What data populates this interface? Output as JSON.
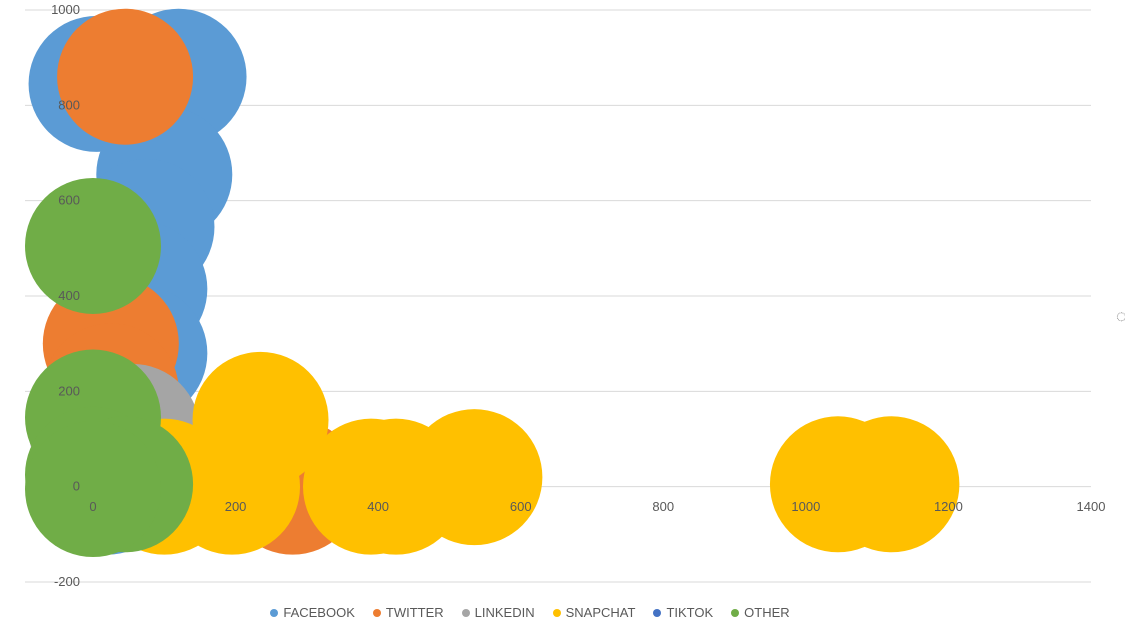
{
  "chart_data": {
    "type": "bubble",
    "xlim": [
      0,
      1400
    ],
    "ylim": [
      -200,
      1000
    ],
    "x_ticks": [
      "0",
      "200",
      "400",
      "600",
      "800",
      "1000",
      "1200",
      "1400"
    ],
    "y_ticks": [
      "-200",
      "0",
      "200",
      "400",
      "600",
      "800",
      "1000"
    ],
    "grid": true,
    "legend_position": "bottom",
    "series": [
      {
        "name": "FACEBOOK",
        "color": "#5B9BD5",
        "points": [
          {
            "x": 5,
            "y": 845
          },
          {
            "x": 120,
            "y": 860
          },
          {
            "x": 100,
            "y": 655
          },
          {
            "x": 75,
            "y": 545
          },
          {
            "x": 65,
            "y": 415
          },
          {
            "x": 65,
            "y": 280
          },
          {
            "x": 25,
            "y": 180
          },
          {
            "x": 55,
            "y": 40
          },
          {
            "x": 20,
            "y": 0
          }
        ]
      },
      {
        "name": "TWITTER",
        "color": "#ED7D31",
        "points": [
          {
            "x": 45,
            "y": 860
          },
          {
            "x": 25,
            "y": 300
          },
          {
            "x": 25,
            "y": 200
          },
          {
            "x": 280,
            "y": 0
          },
          {
            "x": 10,
            "y": 100
          }
        ]
      },
      {
        "name": "LINKEDIN",
        "color": "#A5A5A5",
        "points": [
          {
            "x": 55,
            "y": 115
          },
          {
            "x": 5,
            "y": 120
          }
        ]
      },
      {
        "name": "SNAPCHAT",
        "color": "#FFC000",
        "points": [
          {
            "x": 100,
            "y": 0
          },
          {
            "x": 195,
            "y": 0
          },
          {
            "x": 235,
            "y": 140
          },
          {
            "x": 425,
            "y": 0
          },
          {
            "x": 390,
            "y": 0
          },
          {
            "x": 535,
            "y": 20
          },
          {
            "x": 1045,
            "y": 5
          },
          {
            "x": 1120,
            "y": 5
          }
        ]
      },
      {
        "name": "TIKTOK",
        "color": "#4472C4",
        "points": []
      },
      {
        "name": "OTHER",
        "color": "#70AD47",
        "points": [
          {
            "x": 0,
            "y": 505
          },
          {
            "x": 0,
            "y": 145
          },
          {
            "x": 0,
            "y": 25
          },
          {
            "x": 45,
            "y": 5
          },
          {
            "x": 0,
            "y": -5
          }
        ]
      }
    ]
  }
}
